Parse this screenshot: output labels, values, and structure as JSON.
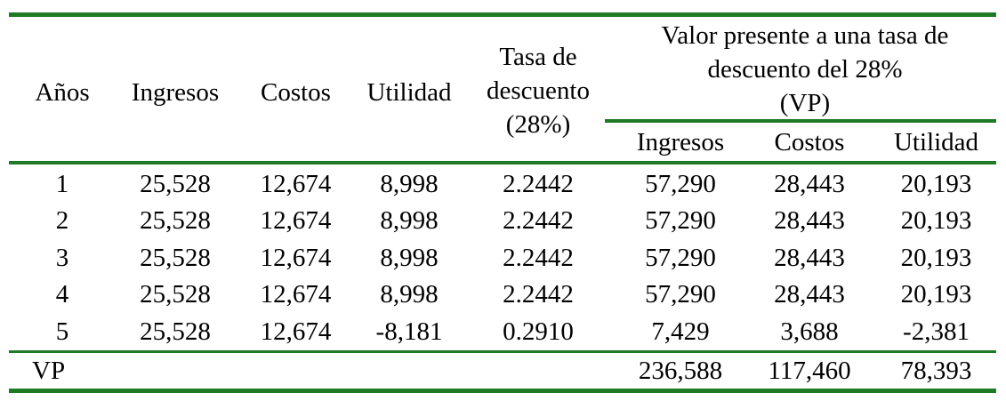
{
  "headers": {
    "anos": "Años",
    "ingresos": "Ingresos",
    "costos": "Costos",
    "utilidad": "Utilidad",
    "tasa_line1": "Tasa de",
    "tasa_line2": "descuento",
    "tasa_line3": "(28%)",
    "vp_line1": "Valor presente a una tasa de",
    "vp_line2": "descuento del 28%",
    "vp_line3": "(VP)",
    "vp_ingresos": "Ingresos",
    "vp_costos": "Costos",
    "vp_utilidad": "Utilidad"
  },
  "rows": [
    {
      "ano": "1",
      "ingresos": "25,528",
      "costos": "12,674",
      "utilidad": "8,998",
      "tasa": "2.2442",
      "vp_ingresos": "57,290",
      "vp_costos": "28,443",
      "vp_utilidad": "20,193"
    },
    {
      "ano": "2",
      "ingresos": "25,528",
      "costos": "12,674",
      "utilidad": "8,998",
      "tasa": "2.2442",
      "vp_ingresos": "57,290",
      "vp_costos": "28,443",
      "vp_utilidad": "20,193"
    },
    {
      "ano": "3",
      "ingresos": "25,528",
      "costos": "12,674",
      "utilidad": "8,998",
      "tasa": "2.2442",
      "vp_ingresos": "57,290",
      "vp_costos": "28,443",
      "vp_utilidad": "20,193"
    },
    {
      "ano": "4",
      "ingresos": "25,528",
      "costos": "12,674",
      "utilidad": "8,998",
      "tasa": "2.2442",
      "vp_ingresos": "57,290",
      "vp_costos": "28,443",
      "vp_utilidad": "20,193"
    },
    {
      "ano": "5",
      "ingresos": "25,528",
      "costos": "12,674",
      "utilidad": "-8,181",
      "tasa": "0.2910",
      "vp_ingresos": "7,429",
      "vp_costos": "3,688",
      "vp_utilidad": "-2,381"
    }
  ],
  "total": {
    "label": "VP",
    "vp_ingresos": "236,588",
    "vp_costos": "117,460",
    "vp_utilidad": "78,393"
  },
  "colors": {
    "rule": "#1f7a26",
    "text": "#000000"
  }
}
